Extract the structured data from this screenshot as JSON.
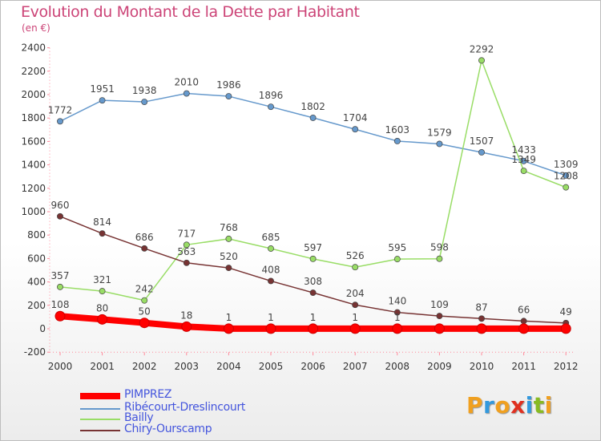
{
  "title": "Evolution du Montant de la Dette par Habitant",
  "subtitle": "(en €)",
  "logo": {
    "letters": [
      "P",
      "r",
      "o",
      "x",
      "i",
      "t",
      "i"
    ],
    "colors": [
      "#f0a020",
      "#3399dd",
      "#f0a020",
      "#e03020",
      "#3399dd",
      "#88bb22",
      "#f0a020"
    ]
  },
  "chart_data": {
    "type": "line",
    "title": "Evolution du Montant de la Dette par Habitant",
    "subtitle": "(en €)",
    "x": [
      "2000",
      "2001",
      "2002",
      "2003",
      "2004",
      "2005",
      "2006",
      "2007",
      "2008",
      "2009",
      "2010",
      "2011",
      "2012"
    ],
    "ylim": [
      -200,
      2400
    ],
    "yticks": [
      "-200",
      "0",
      "200",
      "400",
      "600",
      "800",
      "1000",
      "1200",
      "1400",
      "1600",
      "1800",
      "2000",
      "2200",
      "2400"
    ],
    "grid": false,
    "legend_position": "bottom-left",
    "series": [
      {
        "name": "PIMPREZ",
        "color": "#ff0000",
        "values": [
          108,
          80,
          50,
          18,
          1,
          1,
          1,
          1,
          1,
          1,
          1,
          1,
          1
        ],
        "labels": [
          "108",
          "80",
          "50",
          "18",
          "1",
          "1",
          "1",
          "1",
          "1",
          "",
          "",
          "",
          ""
        ]
      },
      {
        "name": "Ribécourt-Dreslincourt",
        "color": "#6699cc",
        "values": [
          1772,
          1951,
          1938,
          2010,
          1986,
          1896,
          1802,
          1704,
          1603,
          1579,
          1507,
          1433,
          1309
        ],
        "labels": [
          "1772",
          "1951",
          "1938",
          "2010",
          "1986",
          "1896",
          "1802",
          "1704",
          "1603",
          "1579",
          "1507",
          "1433",
          "1309"
        ]
      },
      {
        "name": "Bailly",
        "color": "#99dd66",
        "values": [
          357,
          321,
          242,
          717,
          768,
          685,
          597,
          526,
          595,
          598,
          2292,
          1349,
          1208
        ],
        "labels": [
          "357",
          "321",
          "242",
          "717",
          "768",
          "685",
          "597",
          "526",
          "595",
          "598",
          "2292",
          "1349",
          "1208"
        ]
      },
      {
        "name": "Chiry-Ourscamp",
        "color": "#773333",
        "values": [
          960,
          814,
          686,
          563,
          520,
          408,
          308,
          204,
          140,
          109,
          87,
          66,
          49
        ],
        "labels": [
          "960",
          "814",
          "686",
          "563",
          "520",
          "408",
          "308",
          "204",
          "140",
          "109",
          "87",
          "66",
          "49"
        ]
      }
    ]
  }
}
